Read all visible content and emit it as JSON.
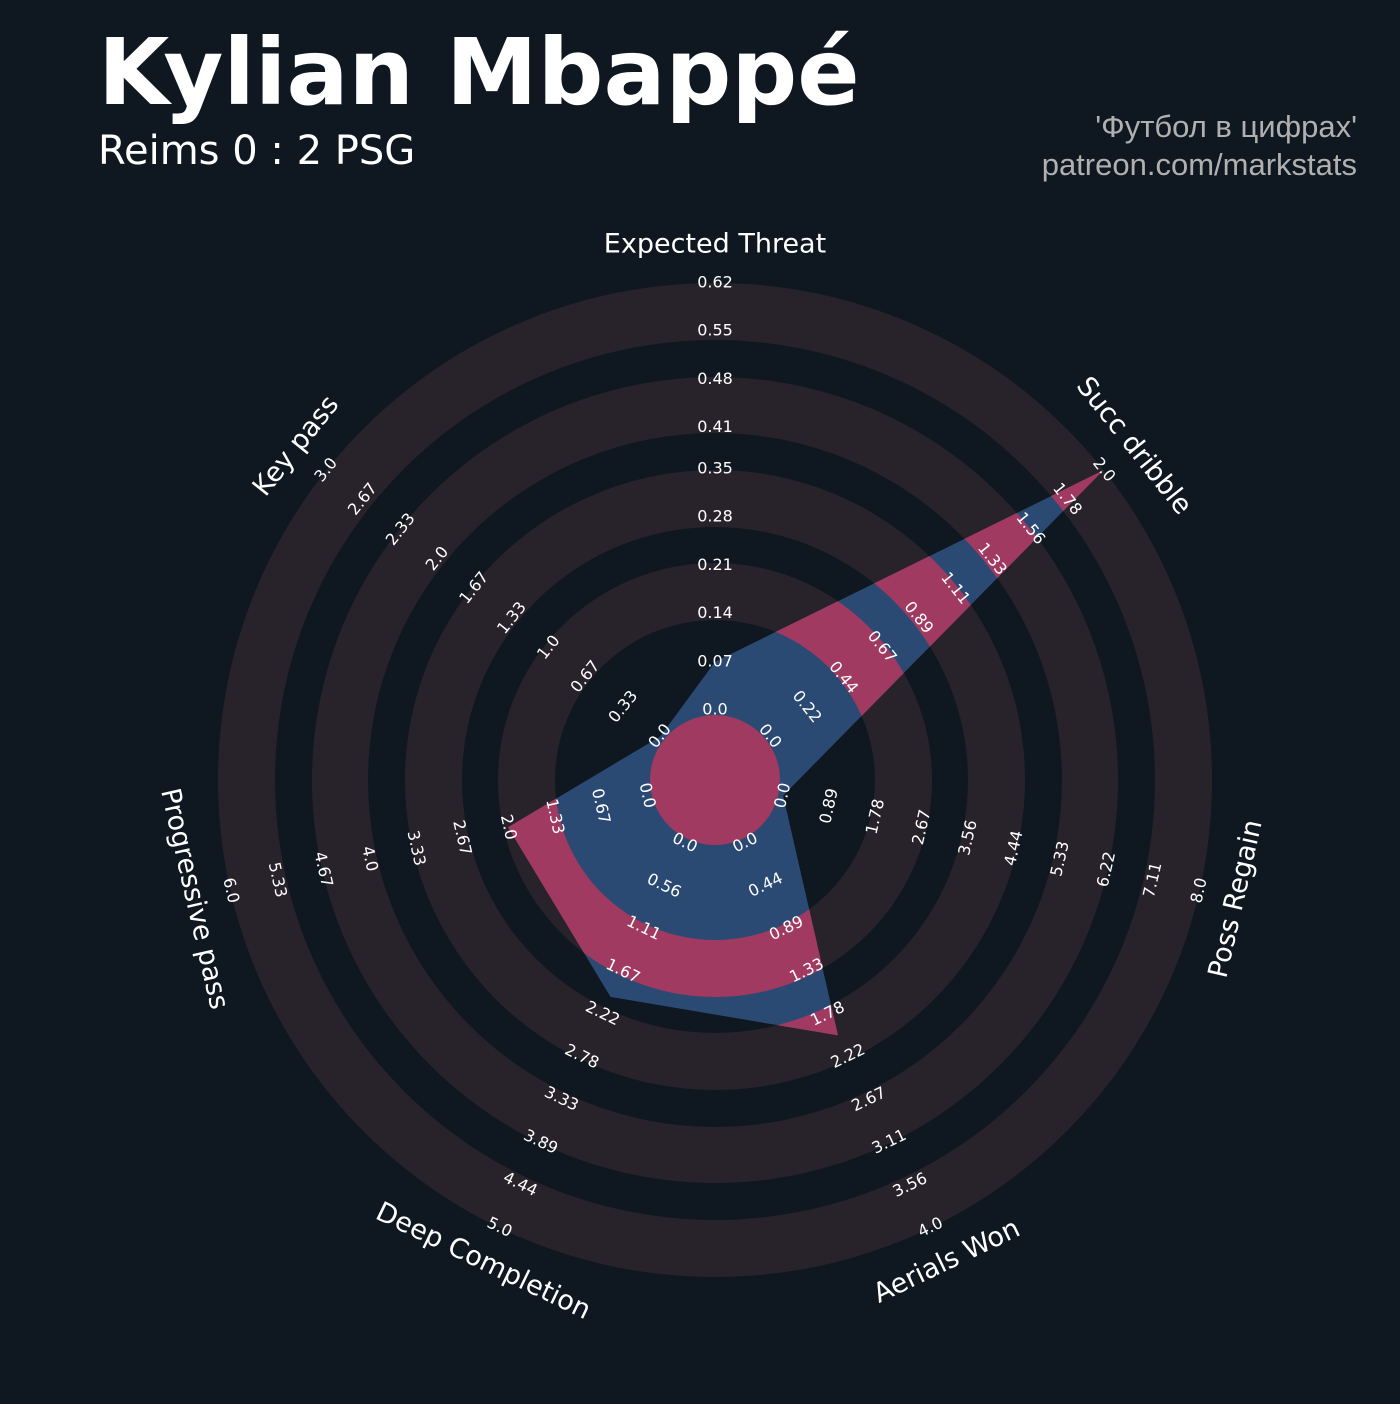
{
  "chart_data": {
    "type": "radar",
    "title": "Kylian Mbappé",
    "subtitle": "Reims 0 : 2 PSG",
    "credits": [
      "'Футбол в цифрах'",
      "patreon.com/markstats"
    ],
    "background": "#0f1820",
    "ring_color": "#28232a",
    "axes": [
      {
        "name": "Expected Threat",
        "lim": [
          0,
          0.62
        ],
        "ticks": [
          {
            "value": 0,
            "label": "0.0"
          },
          0.07,
          0.14,
          0.21,
          0.28,
          0.35,
          0.41,
          0.48,
          0.55,
          0.62
        ]
      },
      {
        "name": "Succ dribble",
        "lim": [
          0,
          2
        ],
        "ticks": [
          {
            "value": 0,
            "label": "0.0"
          },
          0.22,
          0.44,
          0.67,
          0.89,
          1.11,
          1.33,
          1.56,
          1.78,
          {
            "value": 2,
            "label": "2.0"
          }
        ]
      },
      {
        "name": "Poss Regain",
        "lim": [
          0,
          8
        ],
        "ticks": [
          {
            "value": 0,
            "label": "0.0"
          },
          0.89,
          1.78,
          2.67,
          3.56,
          4.44,
          5.33,
          6.22,
          7.11,
          {
            "value": 8,
            "label": "8.0"
          }
        ]
      },
      {
        "name": "Aerials Won",
        "lim": [
          0,
          4
        ],
        "ticks": [
          {
            "value": 0,
            "label": "0.0"
          },
          0.44,
          0.89,
          1.33,
          1.78,
          2.22,
          2.67,
          3.11,
          3.56,
          {
            "value": 4,
            "label": "4.0"
          }
        ]
      },
      {
        "name": "Deep Completion",
        "lim": [
          0,
          5
        ],
        "ticks": [
          {
            "value": 0,
            "label": "0.0"
          },
          0.56,
          1.11,
          1.67,
          2.22,
          2.78,
          3.33,
          3.89,
          4.44,
          {
            "value": 5,
            "label": "5.0"
          }
        ]
      },
      {
        "name": "Progressive pass",
        "lim": [
          0,
          6
        ],
        "ticks": [
          {
            "value": 0,
            "label": "0.0"
          },
          0.67,
          1.33,
          {
            "value": 2,
            "label": "2.0"
          },
          2.67,
          3.33,
          {
            "value": 4,
            "label": "4.0"
          },
          4.67,
          5.33,
          {
            "value": 6,
            "label": "6.0"
          }
        ]
      },
      {
        "name": "Key pass",
        "lim": [
          0,
          3
        ],
        "ticks": [
          {
            "value": 0,
            "label": "0.0"
          },
          0.33,
          0.67,
          {
            "value": 1,
            "label": "1.0"
          },
          1.33,
          1.67,
          {
            "value": 2,
            "label": "2.0"
          },
          2.33,
          2.67,
          {
            "value": 3,
            "label": "3.0"
          }
        ]
      }
    ],
    "series": [
      {
        "color": "#2a4a73",
        "alt_color": "#a13a60",
        "values": [
          0.07,
          2,
          0,
          2,
          2,
          2,
          0
        ]
      }
    ]
  }
}
